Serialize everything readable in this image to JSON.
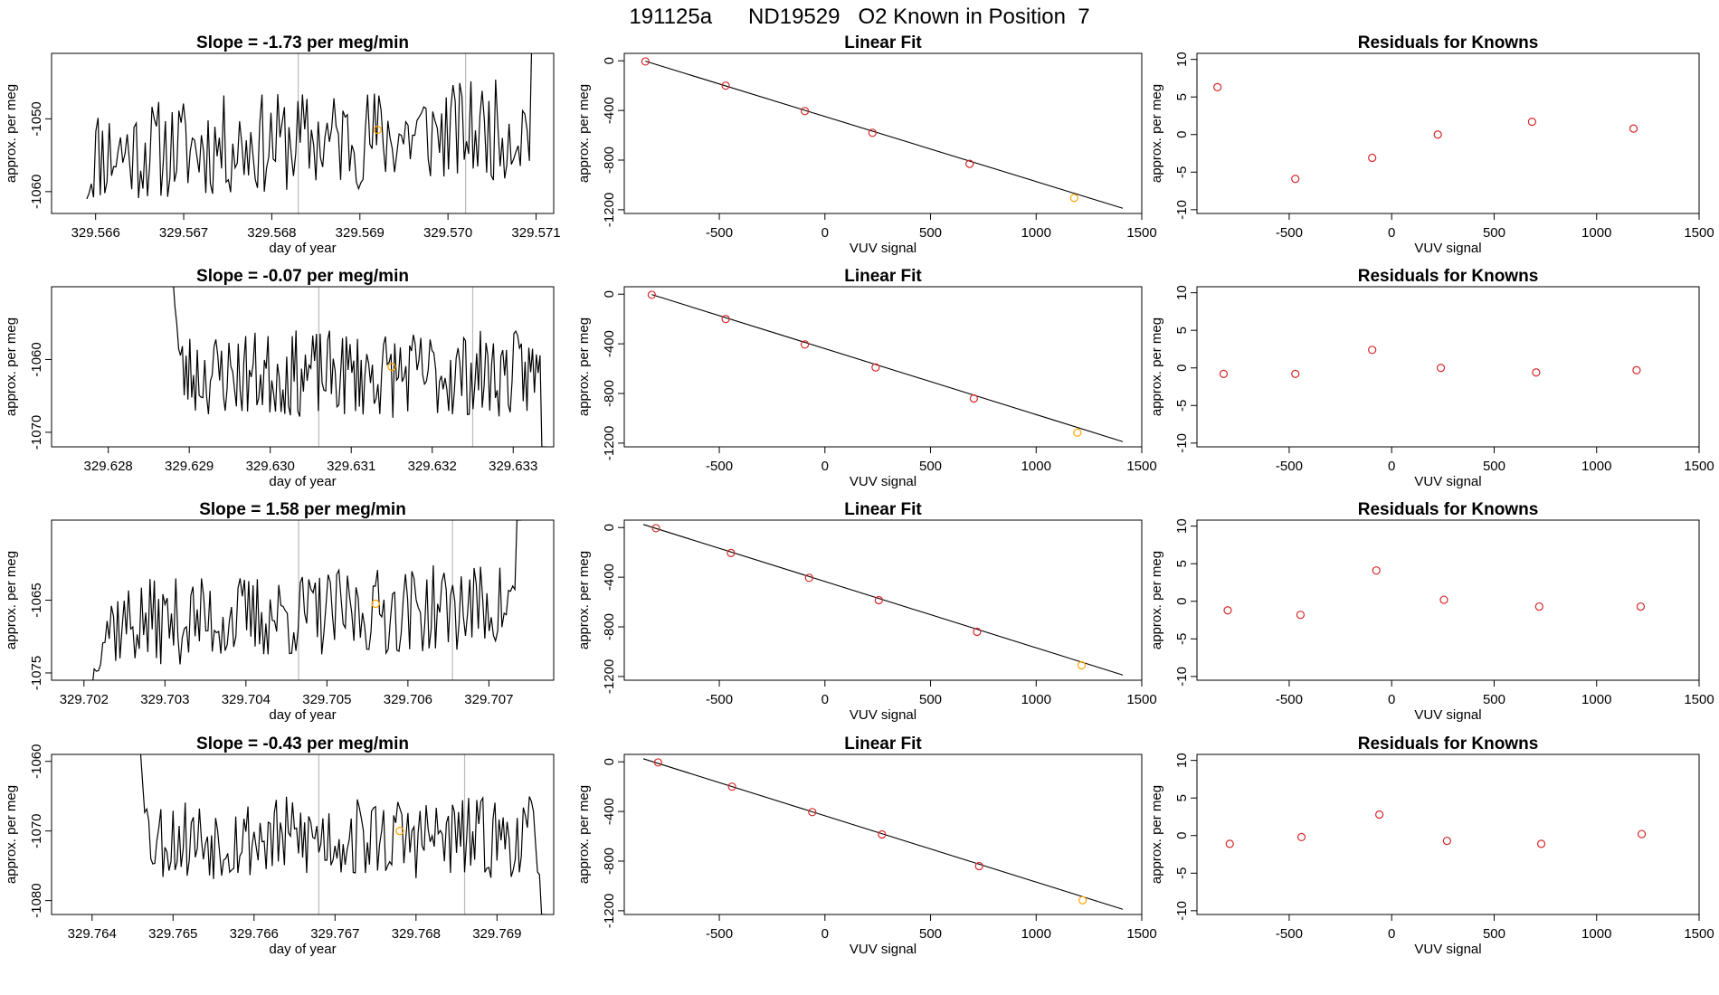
{
  "title": "191125a      ND19529   O2 Known in Position  7",
  "colors": {
    "line": "#000000",
    "point": "#d62728",
    "highlight": "#ffa500",
    "vline": "#bbbbbb",
    "frame": "#000000"
  },
  "chart_data": [
    {
      "type": "line",
      "row": 0,
      "title": "Slope =  -1.73  per meg/min",
      "xlabel": "day of year",
      "ylabel": "approx. per meg",
      "xlim": [
        329.5655,
        329.5712
      ],
      "ylim": [
        -1063,
        -1041
      ],
      "xticks": [
        "329.566",
        "329.567",
        "329.568",
        "329.569",
        "329.570",
        "329.571"
      ],
      "yticks": [
        "-1050",
        "-1060"
      ],
      "vlines": [
        329.5683,
        329.5702
      ],
      "highlight": {
        "x": 329.5692,
        "y": -1051.5
      },
      "seed": 11,
      "start": 329.5659,
      "end": 329.571,
      "start_y": -1061,
      "mean": -1053,
      "amp": 7,
      "slope": 0.9,
      "end_y": -1040
    },
    {
      "type": "scatter",
      "row": 0,
      "title": "Linear Fit",
      "xlabel": "VUV signal",
      "ylabel": "approx. per meg",
      "xlim": [
        -950,
        1500
      ],
      "ylim": [
        -1230,
        60
      ],
      "xticks": [
        "-500",
        "0",
        "500",
        "1000",
        "1500"
      ],
      "yticks": [
        "0",
        "-400",
        "-800",
        "-1200"
      ],
      "points": [
        [
          -850,
          -5
        ],
        [
          -470,
          -200
        ],
        [
          -95,
          -405
        ],
        [
          225,
          -580
        ],
        [
          685,
          -830
        ],
        [
          1180,
          -1105
        ]
      ],
      "fit": [
        [
          -850,
          -3
        ],
        [
          1410,
          -1188
        ]
      ]
    },
    {
      "type": "scatter",
      "row": 0,
      "title": "Residuals for Knowns",
      "xlabel": "VUV signal",
      "ylabel": "approx. per meg",
      "xlim": [
        -950,
        1500
      ],
      "ylim": [
        -10.5,
        10.8
      ],
      "xticks": [
        "-500",
        "0",
        "500",
        "1000",
        "1500"
      ],
      "yticks": [
        "10",
        "5",
        "0",
        "-5",
        "-10"
      ],
      "points": [
        [
          -850,
          6.3
        ],
        [
          -470,
          -5.9
        ],
        [
          -95,
          -3.1
        ],
        [
          225,
          0
        ],
        [
          685,
          1.7
        ],
        [
          1180,
          0.8
        ]
      ]
    },
    {
      "type": "line",
      "row": 1,
      "title": "Slope =  -0.07  per meg/min",
      "xlabel": "day of year",
      "ylabel": "approx. per meg",
      "xlim": [
        329.6273,
        329.6335
      ],
      "ylim": [
        -1072,
        -1050
      ],
      "xticks": [
        "329.628",
        "329.629",
        "329.630",
        "329.631",
        "329.632",
        "329.633"
      ],
      "yticks": [
        "-1060",
        "-1070"
      ],
      "vlines": [
        329.6306,
        329.6325
      ],
      "highlight": {
        "x": 329.6315,
        "y": -1061
      },
      "seed": 23,
      "start": 329.6288,
      "end": 329.6334,
      "start_y": -1049,
      "mean": -1062,
      "amp": 6,
      "slope": 0,
      "end_y": -1072
    },
    {
      "type": "scatter",
      "row": 1,
      "title": "Linear Fit",
      "xlabel": "VUV signal",
      "ylabel": "approx. per meg",
      "xlim": [
        -950,
        1500
      ],
      "ylim": [
        -1230,
        60
      ],
      "xticks": [
        "-500",
        "0",
        "500",
        "1000",
        "1500"
      ],
      "yticks": [
        "0",
        "-400",
        "-800",
        "-1200"
      ],
      "points": [
        [
          -820,
          -5
        ],
        [
          -470,
          -200
        ],
        [
          -95,
          -405
        ],
        [
          240,
          -590
        ],
        [
          705,
          -840
        ],
        [
          1195,
          -1115
        ]
      ],
      "fit": [
        [
          -820,
          -3
        ],
        [
          1410,
          -1188
        ]
      ]
    },
    {
      "type": "scatter",
      "row": 1,
      "title": "Residuals for Knowns",
      "xlabel": "VUV signal",
      "ylabel": "approx. per meg",
      "xlim": [
        -950,
        1500
      ],
      "ylim": [
        -10.5,
        10.8
      ],
      "xticks": [
        "-500",
        "0",
        "500",
        "1000",
        "1500"
      ],
      "yticks": [
        "10",
        "5",
        "0",
        "-5",
        "-10"
      ],
      "points": [
        [
          -820,
          -0.8
        ],
        [
          -470,
          -0.8
        ],
        [
          -95,
          2.4
        ],
        [
          240,
          0
        ],
        [
          705,
          -0.6
        ],
        [
          1195,
          -0.3
        ]
      ]
    },
    {
      "type": "line",
      "row": 2,
      "title": "Slope =  1.58  per meg/min",
      "xlabel": "day of year",
      "ylabel": "approx. per meg",
      "xlim": [
        329.7016,
        329.7078
      ],
      "ylim": [
        -1076,
        -1054
      ],
      "xticks": [
        "329.702",
        "329.703",
        "329.704",
        "329.705",
        "329.706",
        "329.707"
      ],
      "yticks": [
        "-1065",
        "-1075"
      ],
      "vlines": [
        329.70465,
        329.70655
      ],
      "highlight": {
        "x": 329.7056,
        "y": -1065.5
      },
      "seed": 37,
      "start": 329.7021,
      "end": 329.7074,
      "start_y": -1077,
      "mean": -1067,
      "amp": 6,
      "slope": 0.7,
      "end_y": -1054
    },
    {
      "type": "scatter",
      "row": 2,
      "title": "Linear Fit",
      "xlabel": "VUV signal",
      "ylabel": "approx. per meg",
      "xlim": [
        -950,
        1500
      ],
      "ylim": [
        -1230,
        60
      ],
      "xticks": [
        "-500",
        "0",
        "500",
        "1000",
        "1500"
      ],
      "yticks": [
        "0",
        "-400",
        "-800",
        "-1200"
      ],
      "points": [
        [
          -800,
          -5
        ],
        [
          -445,
          -205
        ],
        [
          -75,
          -405
        ],
        [
          255,
          -585
        ],
        [
          720,
          -840
        ],
        [
          1215,
          -1110
        ]
      ],
      "fit": [
        [
          -860,
          25
        ],
        [
          1410,
          -1188
        ]
      ]
    },
    {
      "type": "scatter",
      "row": 2,
      "title": "Residuals for Knowns",
      "xlabel": "VUV signal",
      "ylabel": "approx. per meg",
      "xlim": [
        -950,
        1500
      ],
      "ylim": [
        -10.5,
        10.8
      ],
      "xticks": [
        "-500",
        "0",
        "500",
        "1000",
        "1500"
      ],
      "yticks": [
        "10",
        "5",
        "0",
        "-5",
        "-10"
      ],
      "points": [
        [
          -800,
          -1.2
        ],
        [
          -445,
          -1.8
        ],
        [
          -75,
          4.1
        ],
        [
          255,
          0.2
        ],
        [
          720,
          -0.7
        ],
        [
          1215,
          -0.7
        ]
      ]
    },
    {
      "type": "line",
      "row": 3,
      "title": "Slope =  -0.43  per meg/min",
      "xlabel": "day of year",
      "ylabel": "approx. per meg",
      "xlim": [
        329.7635,
        329.7697
      ],
      "ylim": [
        -1082,
        -1059
      ],
      "xticks": [
        "329.764",
        "329.765",
        "329.766",
        "329.767",
        "329.768",
        "329.769"
      ],
      "yticks": [
        "-1060",
        "-1070",
        "-1080"
      ],
      "vlines": [
        329.7668,
        329.7686
      ],
      "highlight": {
        "x": 329.7678,
        "y": -1070
      },
      "seed": 53,
      "start": 329.7646,
      "end": 329.7696,
      "start_y": -1059,
      "mean": -1071,
      "amp": 6,
      "slope": 0,
      "end_y": -1082
    },
    {
      "type": "scatter",
      "row": 3,
      "title": "Linear Fit",
      "xlabel": "VUV signal",
      "ylabel": "approx. per meg",
      "xlim": [
        -950,
        1500
      ],
      "ylim": [
        -1230,
        60
      ],
      "xticks": [
        "-500",
        "0",
        "500",
        "1000",
        "1500"
      ],
      "yticks": [
        "0",
        "-400",
        "-800",
        "-1200"
      ],
      "points": [
        [
          -790,
          -5
        ],
        [
          -440,
          -200
        ],
        [
          -60,
          -405
        ],
        [
          270,
          -585
        ],
        [
          730,
          -840
        ],
        [
          1220,
          -1115
        ]
      ],
      "fit": [
        [
          -860,
          25
        ],
        [
          1410,
          -1188
        ]
      ]
    },
    {
      "type": "scatter",
      "row": 3,
      "title": "Residuals for Knowns",
      "xlabel": "VUV signal",
      "ylabel": "approx. per meg",
      "xlim": [
        -950,
        1500
      ],
      "ylim": [
        -10.5,
        10.8
      ],
      "xticks": [
        "-500",
        "0",
        "500",
        "1000",
        "1500"
      ],
      "yticks": [
        "10",
        "5",
        "0",
        "-5",
        "-10"
      ],
      "points": [
        [
          -790,
          -1.1
        ],
        [
          -440,
          -0.2
        ],
        [
          -60,
          2.8
        ],
        [
          270,
          -0.7
        ],
        [
          730,
          -1.1
        ],
        [
          1220,
          0.2
        ]
      ]
    }
  ]
}
